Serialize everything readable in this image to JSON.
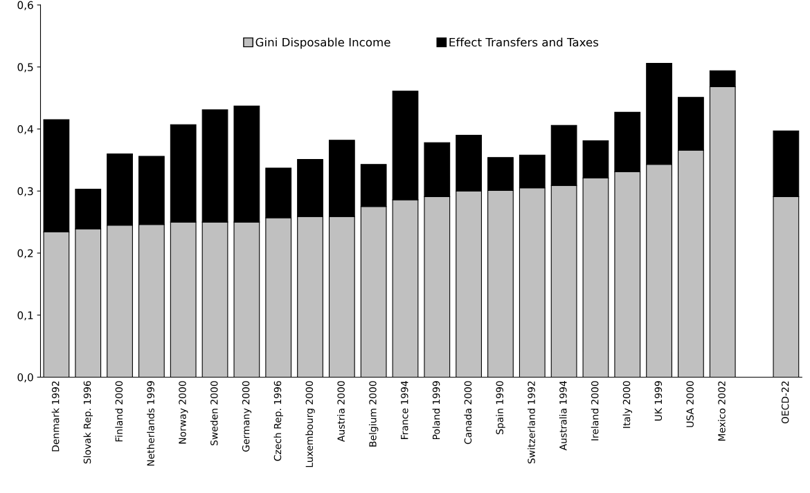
{
  "chart_data": {
    "type": "bar",
    "stacked": true,
    "categories": [
      "Denmark 1992",
      "Slovak Rep. 1996",
      "Finland 2000",
      "Netherlands 1999",
      "Norway 2000",
      "Sweden 2000",
      "Germany 2000",
      "Czech Rep. 1996",
      "Luxembourg 2000",
      "Austria 2000",
      "Belgium 2000",
      "France 1994",
      "Poland 1999",
      "Canada 2000",
      "Spain 1990",
      "Switzerland 1992",
      "Australia 1994",
      "Ireland 2000",
      "Italy 2000",
      "UK 1999",
      "USA 2000",
      "Mexico 2002",
      null,
      "OECD-22"
    ],
    "series": [
      {
        "name": "Gini Disposable Income",
        "color": "#c0c0c0",
        "values": [
          0.234,
          0.239,
          0.245,
          0.246,
          0.25,
          0.25,
          0.25,
          0.257,
          0.259,
          0.259,
          0.275,
          0.286,
          0.291,
          0.3,
          0.301,
          0.305,
          0.309,
          0.321,
          0.331,
          0.343,
          0.366,
          0.468,
          null,
          0.291
        ]
      },
      {
        "name": "Effect Transfers and Taxes",
        "color": "#000000",
        "values": [
          0.181,
          0.064,
          0.115,
          0.11,
          0.157,
          0.181,
          0.187,
          0.08,
          0.092,
          0.123,
          0.068,
          0.175,
          0.087,
          0.09,
          0.053,
          0.053,
          0.097,
          0.06,
          0.096,
          0.163,
          0.085,
          0.026,
          null,
          0.106
        ]
      }
    ],
    "ylim": [
      0,
      0.6
    ],
    "yticks": [
      {
        "value": 0,
        "label": "0,0"
      },
      {
        "value": 0.1,
        "label": "0,1"
      },
      {
        "value": 0.2,
        "label": "0,2"
      },
      {
        "value": 0.3,
        "label": "0,3"
      },
      {
        "value": 0.4,
        "label": "0,4"
      },
      {
        "value": 0.5,
        "label": "0,5"
      },
      {
        "value": 0.6,
        "label": "0,6"
      }
    ],
    "grid": false,
    "legend": "top"
  }
}
